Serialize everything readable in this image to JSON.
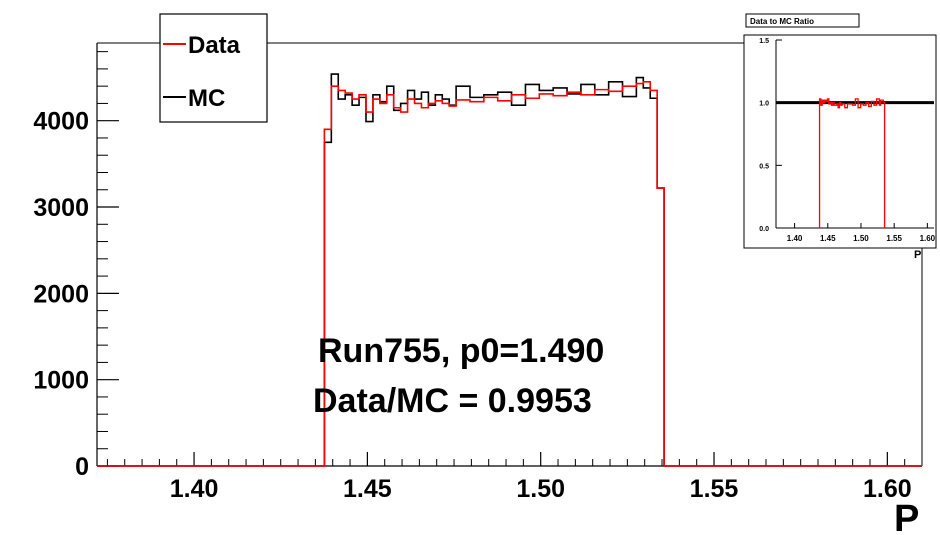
{
  "chart_data": [
    {
      "type": "step",
      "title": "",
      "xlabel": "P",
      "ylabel": "",
      "xlim": [
        1.372,
        1.61
      ],
      "ylim": [
        0,
        4900
      ],
      "x_ticks": [
        1.4,
        1.45,
        1.5,
        1.55,
        1.6
      ],
      "x_tick_labels": [
        "1.40",
        "1.45",
        "1.50",
        "1.55",
        "1.60"
      ],
      "y_ticks": [
        0,
        1000,
        2000,
        3000,
        4000
      ],
      "y_tick_labels": [
        "0",
        "1000",
        "2000",
        "3000",
        "4000"
      ],
      "legend": {
        "position": "top-left",
        "entries": [
          "Data",
          "MC"
        ]
      },
      "annotations": [
        "Run755, p0=1.490",
        "Data/MC = 0.9953"
      ],
      "series": [
        {
          "name": "Data",
          "color": "#ff0000",
          "x_edges": [
            1.4376,
            1.4396,
            1.4416,
            1.4436,
            1.4456,
            1.4476,
            1.4496,
            1.4516,
            1.4536,
            1.4556,
            1.4576,
            1.4596,
            1.4616,
            1.4636,
            1.4656,
            1.4676,
            1.4696,
            1.4716,
            1.4736,
            1.4756,
            1.4796,
            1.4836,
            1.4876,
            1.4916,
            1.4956,
            1.4996,
            1.5036,
            1.5076,
            1.5116,
            1.5156,
            1.5196,
            1.5236,
            1.5276,
            1.5296,
            1.5316,
            1.5336,
            1.5356
          ],
          "values": [
            3900,
            4400,
            4350,
            4320,
            4250,
            4300,
            4100,
            4250,
            4200,
            4300,
            4150,
            4100,
            4250,
            4200,
            4150,
            4200,
            4230,
            4200,
            4170,
            4240,
            4220,
            4270,
            4230,
            4300,
            4260,
            4310,
            4290,
            4330,
            4300,
            4360,
            4340,
            4400,
            4430,
            4450,
            4350,
            3220
          ]
        },
        {
          "name": "MC",
          "color": "#000000",
          "x_edges": [
            1.4376,
            1.4396,
            1.4416,
            1.4436,
            1.4456,
            1.4476,
            1.4496,
            1.4516,
            1.4536,
            1.4556,
            1.4576,
            1.4596,
            1.4616,
            1.4636,
            1.4656,
            1.4676,
            1.4696,
            1.4716,
            1.4736,
            1.4756,
            1.4796,
            1.4836,
            1.4876,
            1.4916,
            1.4956,
            1.4996,
            1.5036,
            1.5076,
            1.5116,
            1.5156,
            1.5196,
            1.5236,
            1.5276,
            1.5296,
            1.5316,
            1.5336,
            1.5356
          ],
          "values": [
            3750,
            4540,
            4250,
            4300,
            4180,
            4270,
            3990,
            4300,
            4220,
            4400,
            4120,
            4200,
            4350,
            4250,
            4330,
            4180,
            4300,
            4250,
            4180,
            4400,
            4270,
            4300,
            4330,
            4180,
            4420,
            4350,
            4380,
            4310,
            4420,
            4300,
            4450,
            4280,
            4500,
            4380,
            4260,
            3220
          ]
        }
      ]
    },
    {
      "type": "step",
      "title": "Data to MC Ratio",
      "xlabel": "P",
      "ylabel": "",
      "xlim": [
        1.372,
        1.61
      ],
      "ylim": [
        0,
        1.5
      ],
      "x_ticks": [
        1.4,
        1.45,
        1.5,
        1.55,
        1.6
      ],
      "x_tick_labels": [
        "1.40",
        "1.45",
        "1.50",
        "1.55",
        "1.60"
      ],
      "y_ticks": [
        0,
        0.5,
        1.0,
        1.5
      ],
      "y_tick_labels": [
        "0.0",
        "0.5",
        "1.0",
        "1.5"
      ],
      "reference_line": 1.0,
      "series": [
        {
          "name": "",
          "color": "#ff0000",
          "x_edges": [
            1.4376,
            1.4396,
            1.4416,
            1.4436,
            1.4456,
            1.4476,
            1.4496,
            1.4516,
            1.4536,
            1.4556,
            1.4576,
            1.4596,
            1.4616,
            1.4636,
            1.4656,
            1.4676,
            1.4696,
            1.4716,
            1.4736,
            1.4756,
            1.4796,
            1.4836,
            1.4876,
            1.4916,
            1.4956,
            1.4996,
            1.5036,
            1.5076,
            1.5116,
            1.5156,
            1.5196,
            1.5236,
            1.5276,
            1.5296,
            1.5316,
            1.5336,
            1.5356
          ],
          "values": [
            1.03,
            0.98,
            1.02,
            1.0,
            1.02,
            1.01,
            1.03,
            0.99,
            1.0,
            0.98,
            1.0,
            0.98,
            0.98,
            0.99,
            0.96,
            1.0,
            0.98,
            0.99,
            0.99,
            0.96,
            0.99,
            0.99,
            0.98,
            1.03,
            0.96,
            0.99,
            0.98,
            1.0,
            0.97,
            1.01,
            0.98,
            1.03,
            0.98,
            1.02,
            1.02,
            1.0
          ]
        }
      ]
    }
  ]
}
